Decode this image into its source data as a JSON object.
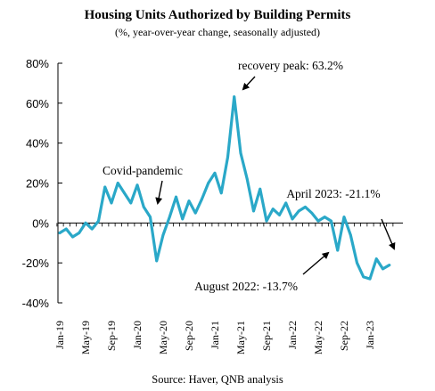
{
  "chart_data": {
    "type": "line",
    "title": "Housing Units Authorized by Building Permits",
    "subtitle": "(%, year-over-year change, seasonally adjusted)",
    "source": "Source: Haver, QNB analysis",
    "ylim": [
      -40,
      80
    ],
    "yticks": [
      -40,
      -20,
      0,
      20,
      40,
      60,
      80
    ],
    "ytick_suffix": "%",
    "xtick_labels": [
      "Jan-19",
      "May-19",
      "Sep-19",
      "Jan-20",
      "May-20",
      "Sep-20",
      "Jan-21",
      "May-21",
      "Sep-21",
      "Jan-22",
      "May-22",
      "Sep-22",
      "Jan-23"
    ],
    "grid": false,
    "color": "#2AA8C8",
    "series": [
      {
        "name": "",
        "x": [
          "Jan-19",
          "Feb-19",
          "Mar-19",
          "Apr-19",
          "May-19",
          "Jun-19",
          "Jul-19",
          "Aug-19",
          "Sep-19",
          "Oct-19",
          "Nov-19",
          "Dec-19",
          "Jan-20",
          "Feb-20",
          "Mar-20",
          "Apr-20",
          "May-20",
          "Jun-20",
          "Jul-20",
          "Aug-20",
          "Sep-20",
          "Oct-20",
          "Nov-20",
          "Dec-20",
          "Jan-21",
          "Feb-21",
          "Mar-21",
          "Apr-21",
          "May-21",
          "Jun-21",
          "Jul-21",
          "Aug-21",
          "Sep-21",
          "Oct-21",
          "Nov-21",
          "Dec-21",
          "Jan-22",
          "Feb-22",
          "Mar-22",
          "Apr-22",
          "May-22",
          "Jun-22",
          "Jul-22",
          "Aug-22",
          "Sep-22",
          "Oct-22",
          "Nov-22",
          "Dec-22",
          "Jan-23",
          "Feb-23",
          "Mar-23",
          "Apr-23"
        ],
        "values": [
          -5,
          -3,
          -7,
          -5,
          0,
          -3,
          1,
          18,
          10,
          20,
          15,
          10,
          19,
          8,
          3,
          -19,
          -6,
          3,
          13,
          2,
          11,
          5,
          12,
          20,
          25,
          15,
          33,
          63.2,
          35,
          22,
          6,
          17,
          1,
          7,
          4,
          10,
          2,
          6,
          8,
          5,
          1,
          3,
          1,
          -13.7,
          3,
          -6,
          -20,
          -27,
          -28,
          -18,
          -23,
          -21.1
        ]
      }
    ],
    "annotations": [
      {
        "text": "recovery peak: 63.2%",
        "x": "Apr-21",
        "y": 63.2
      },
      {
        "text": "Covid-pandemic",
        "x": "Mar-20",
        "y": 3
      },
      {
        "text": "April 2023: -21.1%",
        "x": "Apr-23",
        "y": -21.1
      },
      {
        "text": "August 2022: -13.7%",
        "x": "Aug-22",
        "y": -13.7
      }
    ]
  }
}
